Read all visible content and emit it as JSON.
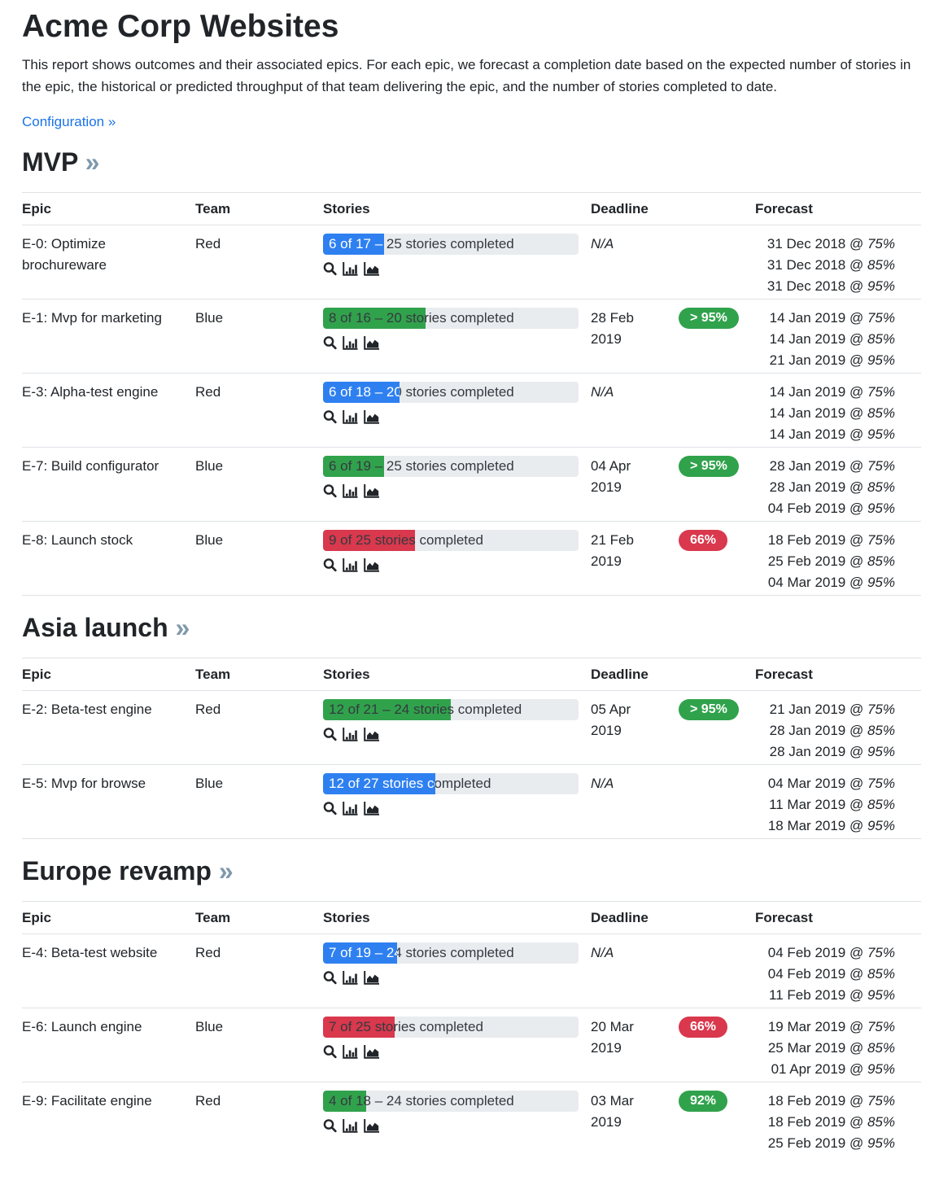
{
  "page": {
    "title": "Acme Corp Websites",
    "description": "This report shows outcomes and their associated epics. For each epic, we forecast a completion date based on the expected number of stories in the epic, the historical or predicted throughput of that team delivering the epic, and the number of stories completed to date.",
    "config_link": "Configuration »"
  },
  "ui": {
    "section_chevron": "»",
    "forecast_separator": "@",
    "icons": [
      "search-icon",
      "bar-chart-icon",
      "area-chart-icon"
    ],
    "colors": {
      "blue": "#2e80f0",
      "green": "#31a24c",
      "red": "#d9384d",
      "bar_bg": "#e9ecef",
      "border": "#dee2e6",
      "text": "#212529",
      "link": "#1a73e8",
      "chevron": "#7f99ac",
      "bar_text": "#343a40",
      "badge_text": "#ffffff"
    }
  },
  "table": {
    "headers": [
      "Epic",
      "Team",
      "Stories",
      "Deadline",
      "Forecast"
    ]
  },
  "sections": [
    {
      "heading": "MVP",
      "rows": [
        {
          "epic": "E-0: Optimize brochureware",
          "team": "Red",
          "stories": {
            "label": "6 of 17 – 25 stories completed",
            "percent": 24,
            "color": "blue"
          },
          "deadline": {
            "value": "N/A",
            "na": true
          },
          "badge": null,
          "forecasts": [
            {
              "date": "31 Dec 2018",
              "percent": "75%"
            },
            {
              "date": "31 Dec 2018",
              "percent": "85%"
            },
            {
              "date": "31 Dec 2018",
              "percent": "95%"
            }
          ]
        },
        {
          "epic": "E-1: Mvp for marketing",
          "team": "Blue",
          "stories": {
            "label": "8 of 16 – 20 stories completed",
            "percent": 40,
            "color": "green"
          },
          "deadline": {
            "value": "28 Feb 2019",
            "na": false
          },
          "badge": {
            "label": "> 95%",
            "color": "green"
          },
          "forecasts": [
            {
              "date": "14 Jan 2019",
              "percent": "75%"
            },
            {
              "date": "14 Jan 2019",
              "percent": "85%"
            },
            {
              "date": "21 Jan 2019",
              "percent": "95%"
            }
          ]
        },
        {
          "epic": "E-3: Alpha-test engine",
          "team": "Red",
          "stories": {
            "label": "6 of 18 – 20 stories completed",
            "percent": 30,
            "color": "blue"
          },
          "deadline": {
            "value": "N/A",
            "na": true
          },
          "badge": null,
          "forecasts": [
            {
              "date": "14 Jan 2019",
              "percent": "75%"
            },
            {
              "date": "14 Jan 2019",
              "percent": "85%"
            },
            {
              "date": "14 Jan 2019",
              "percent": "95%"
            }
          ]
        },
        {
          "epic": "E-7: Build configurator",
          "team": "Blue",
          "stories": {
            "label": "6 of 19 – 25 stories completed",
            "percent": 24,
            "color": "green"
          },
          "deadline": {
            "value": "04 Apr 2019",
            "na": false
          },
          "badge": {
            "label": "> 95%",
            "color": "green"
          },
          "forecasts": [
            {
              "date": "28 Jan 2019",
              "percent": "75%"
            },
            {
              "date": "28 Jan 2019",
              "percent": "85%"
            },
            {
              "date": "04 Feb 2019",
              "percent": "95%"
            }
          ]
        },
        {
          "epic": "E-8: Launch stock",
          "team": "Blue",
          "stories": {
            "label": "9 of 25 stories completed",
            "percent": 36,
            "color": "red"
          },
          "deadline": {
            "value": "21 Feb 2019",
            "na": false
          },
          "badge": {
            "label": "66%",
            "color": "red"
          },
          "forecasts": [
            {
              "date": "18 Feb 2019",
              "percent": "75%"
            },
            {
              "date": "25 Feb 2019",
              "percent": "85%"
            },
            {
              "date": "04 Mar 2019",
              "percent": "95%"
            }
          ]
        }
      ]
    },
    {
      "heading": "Asia launch",
      "rows": [
        {
          "epic": "E-2: Beta-test engine",
          "team": "Red",
          "stories": {
            "label": "12 of 21 – 24 stories completed",
            "percent": 50,
            "color": "green"
          },
          "deadline": {
            "value": "05 Apr 2019",
            "na": false
          },
          "badge": {
            "label": "> 95%",
            "color": "green"
          },
          "forecasts": [
            {
              "date": "21 Jan 2019",
              "percent": "75%"
            },
            {
              "date": "28 Jan 2019",
              "percent": "85%"
            },
            {
              "date": "28 Jan 2019",
              "percent": "95%"
            }
          ]
        },
        {
          "epic": "E-5: Mvp for browse",
          "team": "Blue",
          "stories": {
            "label": "12 of 27 stories completed",
            "percent": 44,
            "color": "blue"
          },
          "deadline": {
            "value": "N/A",
            "na": true
          },
          "badge": null,
          "forecasts": [
            {
              "date": "04 Mar 2019",
              "percent": "75%"
            },
            {
              "date": "11 Mar 2019",
              "percent": "85%"
            },
            {
              "date": "18 Mar 2019",
              "percent": "95%"
            }
          ]
        }
      ]
    },
    {
      "heading": "Europe revamp",
      "rows": [
        {
          "epic": "E-4: Beta-test website",
          "team": "Red",
          "stories": {
            "label": "7 of 19 – 24 stories completed",
            "percent": 29,
            "color": "blue"
          },
          "deadline": {
            "value": "N/A",
            "na": true
          },
          "badge": null,
          "forecasts": [
            {
              "date": "04 Feb 2019",
              "percent": "75%"
            },
            {
              "date": "04 Feb 2019",
              "percent": "85%"
            },
            {
              "date": "11 Feb 2019",
              "percent": "95%"
            }
          ]
        },
        {
          "epic": "E-6: Launch engine",
          "team": "Blue",
          "stories": {
            "label": "7 of 25 stories completed",
            "percent": 28,
            "color": "red"
          },
          "deadline": {
            "value": "20 Mar 2019",
            "na": false
          },
          "badge": {
            "label": "66%",
            "color": "red"
          },
          "forecasts": [
            {
              "date": "19 Mar 2019",
              "percent": "75%"
            },
            {
              "date": "25 Mar 2019",
              "percent": "85%"
            },
            {
              "date": "01 Apr 2019",
              "percent": "95%"
            }
          ]
        },
        {
          "epic": "E-9: Facilitate engine",
          "team": "Red",
          "stories": {
            "label": "4 of 18 – 24 stories completed",
            "percent": 17,
            "color": "green"
          },
          "deadline": {
            "value": "03 Mar 2019",
            "na": false
          },
          "badge": {
            "label": "92%",
            "color": "green"
          },
          "forecasts": [
            {
              "date": "18 Feb 2019",
              "percent": "75%"
            },
            {
              "date": "18 Feb 2019",
              "percent": "85%"
            },
            {
              "date": "25 Feb 2019",
              "percent": "95%"
            }
          ]
        }
      ]
    }
  ]
}
